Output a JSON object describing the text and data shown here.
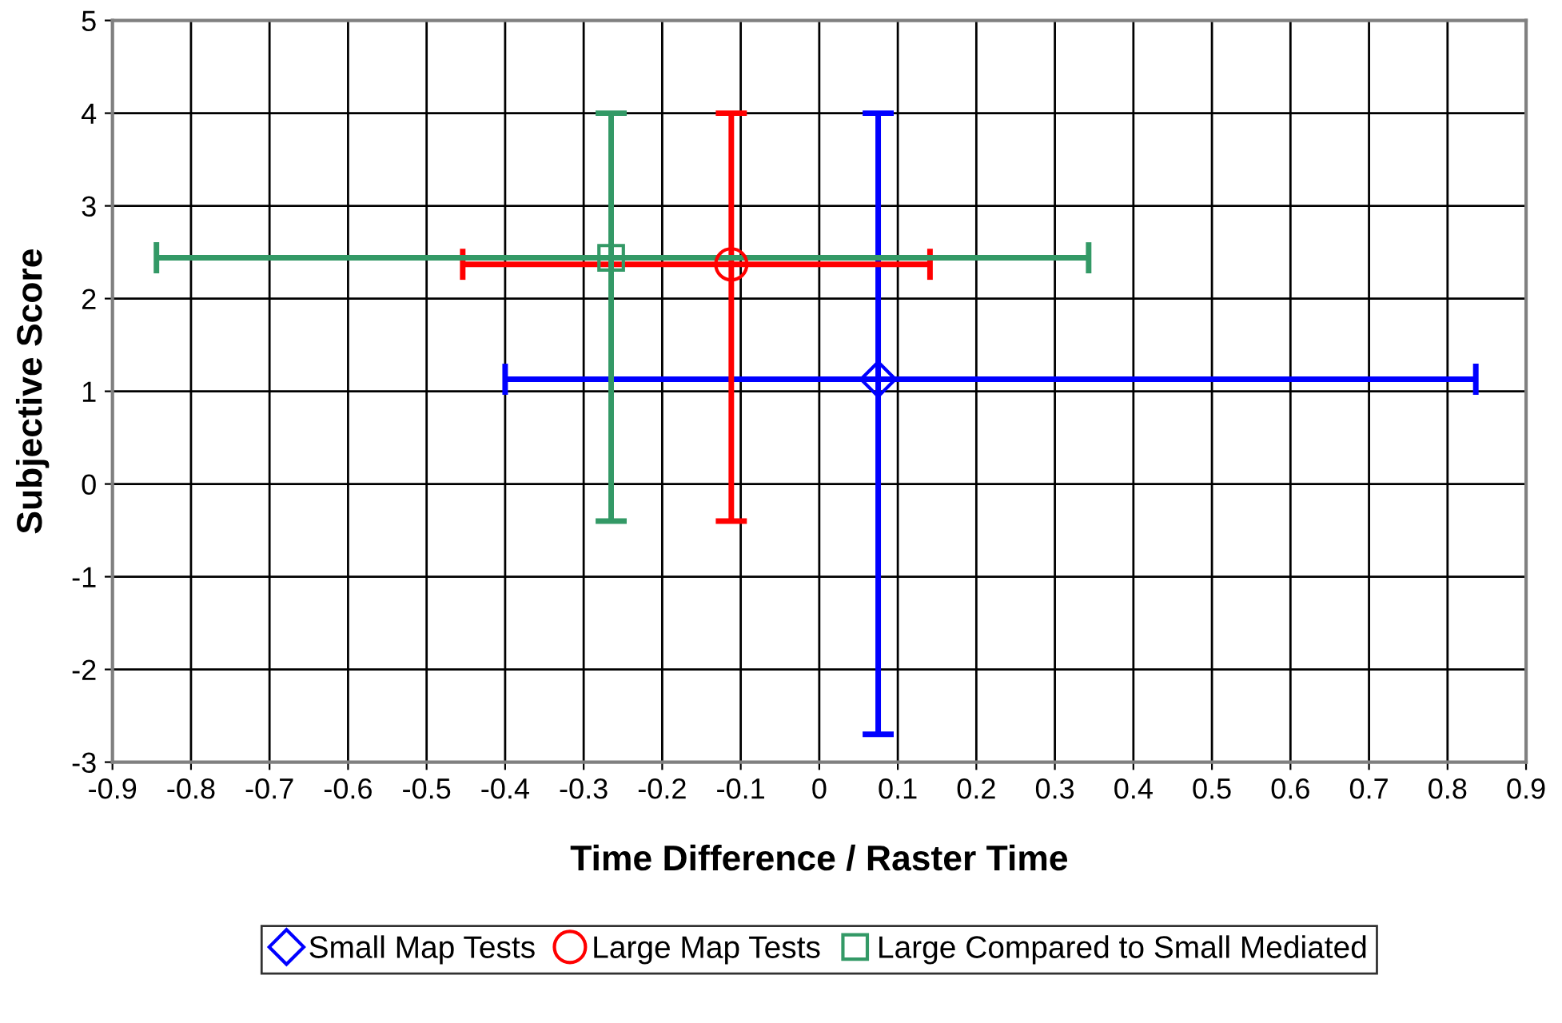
{
  "chart_data": {
    "type": "scatter",
    "xlabel": "Time Difference / Raster Time",
    "ylabel": "Subjective Score",
    "xlim": [
      -0.9,
      0.9
    ],
    "ylim": [
      -3,
      5
    ],
    "xticks": [
      -0.9,
      -0.8,
      -0.7,
      -0.6,
      -0.5,
      -0.4,
      -0.3,
      -0.2,
      -0.1,
      0,
      0.1,
      0.2,
      0.3,
      0.4,
      0.5,
      0.6,
      0.7,
      0.8,
      0.9
    ],
    "yticks": [
      -3,
      -2,
      -1,
      0,
      1,
      2,
      3,
      4,
      5
    ],
    "grid": true,
    "legend": "bottom",
    "series": [
      {
        "name": "Small Map Tests",
        "color": "#0000ff",
        "marker": "diamond",
        "x": [
          0.075
        ],
        "values": [
          1.13
        ],
        "errors": [
          [
            -2.7,
            4.0
          ]
        ],
        "xerrors": [
          [
            -0.4,
            0.836
          ]
        ]
      },
      {
        "name": "Large Map Tests",
        "color": "#ff0000",
        "marker": "circle",
        "x": [
          -0.112
        ],
        "values": [
          2.37
        ],
        "errors": [
          [
            -0.4,
            4.0
          ]
        ],
        "xerrors": [
          [
            -0.454,
            0.141
          ]
        ]
      },
      {
        "name": "Large Compared to Small Mediated",
        "color": "#339966",
        "marker": "square",
        "x": [
          -0.265
        ],
        "values": [
          2.44
        ],
        "errors": [
          [
            -0.4,
            4.0
          ]
        ],
        "xerrors": [
          [
            -0.844,
            0.343
          ]
        ]
      }
    ]
  }
}
